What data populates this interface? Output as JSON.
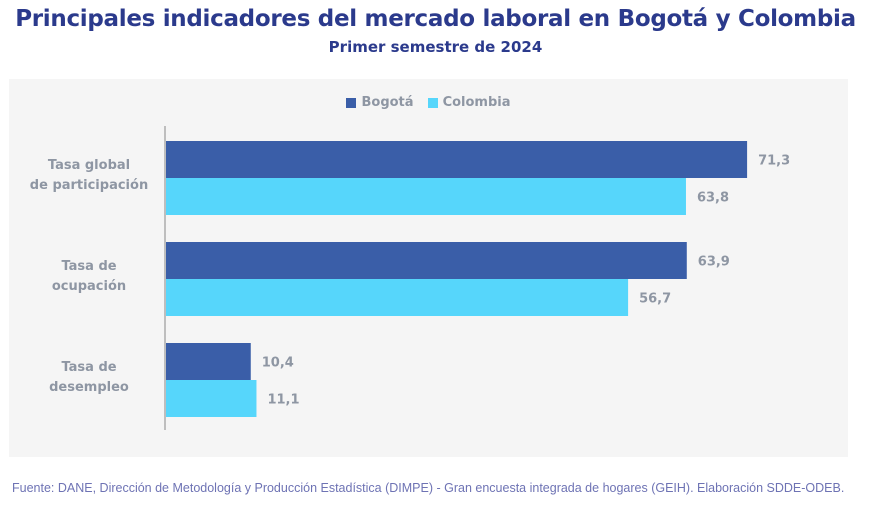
{
  "header": {
    "title": "Principales indicadores del mercado laboral en Bogotá y Colombia",
    "subtitle": "Primer semestre de 2024"
  },
  "footer": {
    "source": "Fuente: DANE, Dirección de Metodología y Producción Estadística (DIMPE) - Gran encuesta integrada de hogares (GEIH). Elaboración SDDE-ODEB."
  },
  "chart_data": {
    "type": "bar",
    "orientation": "horizontal",
    "title": "Principales indicadores del mercado laboral en Bogotá y Colombia",
    "subtitle": "Primer semestre de 2024",
    "categories": [
      [
        "Tasa global",
        "de participación"
      ],
      [
        "Tasa de",
        "ocupación"
      ],
      [
        "Tasa de",
        "desempleo"
      ]
    ],
    "series": [
      {
        "name": "Bogotá",
        "color": "#3a5ea8",
        "values": [
          71.3,
          63.9,
          10.4
        ],
        "labels": [
          "71,3",
          "63,9",
          "10,4"
        ]
      },
      {
        "name": "Colombia",
        "color": "#56d6fb",
        "values": [
          63.8,
          56.7,
          11.1
        ],
        "labels": [
          "63,8",
          "56,7",
          "11,1"
        ]
      }
    ],
    "xlim": [
      0,
      80
    ],
    "xlabel": "",
    "ylabel": "",
    "grid": false,
    "legend": "top-center",
    "axis_color": "#9a9a9a",
    "text_color": "#8e96a3"
  }
}
